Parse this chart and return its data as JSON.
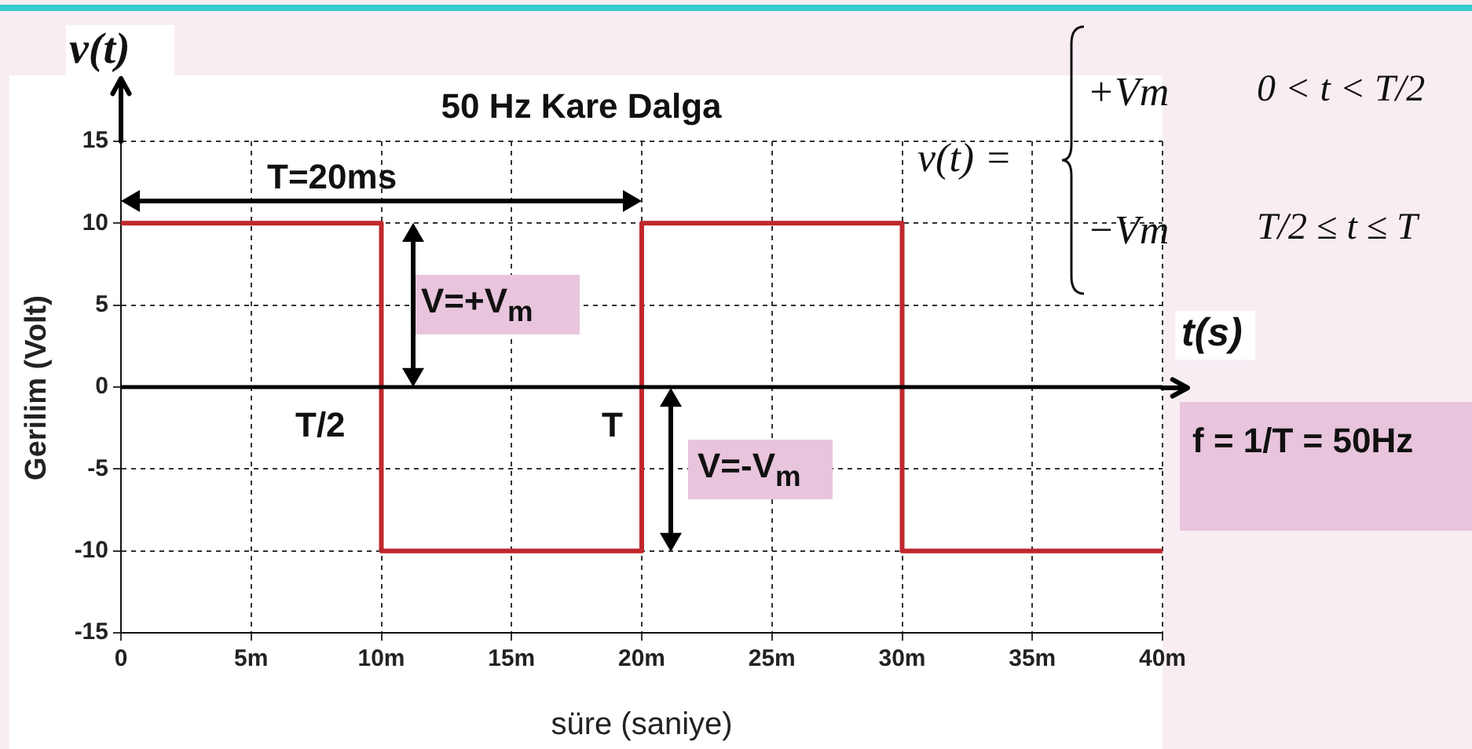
{
  "chart_data": {
    "type": "line",
    "title": "50 Hz Kare Dalga",
    "xlabel": "süre (saniye)",
    "ylabel": "Gerilim (Volt)",
    "x": [
      0,
      10,
      10,
      20,
      20,
      30,
      30,
      40
    ],
    "series": [
      {
        "color": "#c0282d",
        "values": [
          10,
          10,
          -10,
          -10,
          10,
          10,
          -10,
          -10
        ]
      }
    ],
    "xlim": [
      0,
      40
    ],
    "xticks": [
      0,
      {
        "value": 5,
        "label": "5m"
      },
      {
        "value": 10,
        "label": "10m"
      },
      {
        "value": 15,
        "label": "15m"
      },
      {
        "value": 20,
        "label": "20m"
      },
      {
        "value": 25,
        "label": "25m"
      },
      {
        "value": 30,
        "label": "30m"
      },
      {
        "value": 35,
        "label": "35m"
      },
      {
        "value": 40,
        "label": "40m"
      }
    ],
    "ylim": [
      -15,
      15
    ],
    "yticks": [
      -15,
      -10,
      -5,
      0,
      5,
      10,
      15
    ],
    "grid": true,
    "marker": "none",
    "line_style": "solid",
    "annotations": [
      "v(t)",
      "t(s)",
      "T=20ms",
      "V=+V$_{m}$",
      "T/2",
      "T",
      "V=-V$_{m}$",
      "f = 1/T = 50Hz",
      "v(t) =",
      "+Vm",
      "0 < t < T/2",
      "−Vm",
      "T/2 ≤ t ≤ T"
    ]
  }
}
